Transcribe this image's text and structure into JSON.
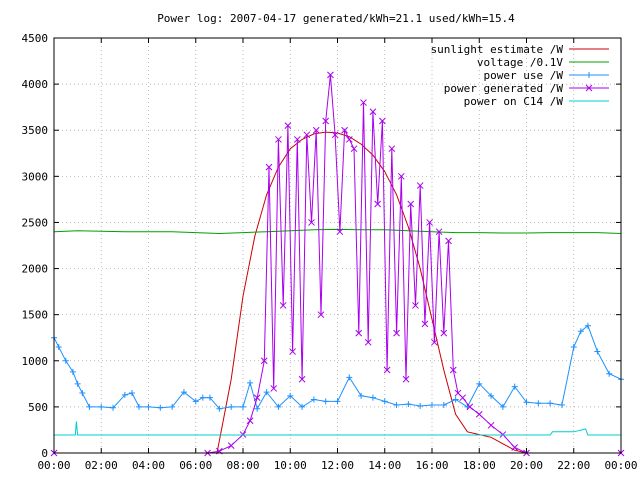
{
  "chart_data": {
    "type": "line",
    "title": "Power log: 2007-04-17 generated/kWh=21.1 used/kWh=15.4",
    "xlabel": "",
    "ylabel": "",
    "xlim": [
      0,
      24
    ],
    "ylim": [
      0,
      4500
    ],
    "x_ticks": [
      0,
      2,
      4,
      6,
      8,
      10,
      12,
      14,
      16,
      18,
      20,
      22,
      24
    ],
    "x_tick_labels": [
      "00:00",
      "02:00",
      "04:00",
      "06:00",
      "08:00",
      "10:00",
      "12:00",
      "14:00",
      "16:00",
      "18:00",
      "20:00",
      "22:00",
      "00:00"
    ],
    "y_ticks": [
      0,
      500,
      1000,
      1500,
      2000,
      2500,
      3000,
      3500,
      4000,
      4500
    ],
    "y_tick_labels": [
      "0",
      "500",
      "1000",
      "1500",
      "2000",
      "2500",
      "3000",
      "3500",
      "4000",
      "4500"
    ],
    "grid": true,
    "legend_position": "top-right",
    "series": [
      {
        "name": "sunlight estimate /W",
        "color": "#cc0000",
        "marker": "none",
        "x": [
          0,
          6.9,
          7.5,
          8,
          8.5,
          9,
          9.5,
          10,
          10.5,
          11,
          11.5,
          12,
          12.5,
          13,
          13.5,
          14,
          14.5,
          15,
          15.5,
          16,
          16.5,
          17,
          17.5,
          18,
          18.5,
          19,
          19.5,
          20,
          24
        ],
        "y": [
          0,
          0,
          800,
          1700,
          2350,
          2800,
          3100,
          3300,
          3400,
          3460,
          3480,
          3470,
          3430,
          3350,
          3230,
          3050,
          2800,
          2450,
          2000,
          1450,
          900,
          420,
          230,
          200,
          170,
          100,
          30,
          0,
          0
        ]
      },
      {
        "name": "voltage /0.1V",
        "color": "#00a000",
        "marker": "none",
        "x": [
          0,
          1,
          2,
          3,
          4,
          5,
          6,
          7,
          8,
          9,
          10,
          11,
          12,
          13,
          14,
          15,
          16,
          17,
          18,
          19,
          20,
          21,
          22,
          23,
          24
        ],
        "y": [
          2400,
          2410,
          2405,
          2400,
          2400,
          2400,
          2390,
          2380,
          2390,
          2400,
          2410,
          2420,
          2425,
          2420,
          2420,
          2410,
          2400,
          2390,
          2390,
          2385,
          2385,
          2390,
          2390,
          2390,
          2380
        ]
      },
      {
        "name": "power use /W",
        "color": "#1e90ff",
        "marker": "plus",
        "x": [
          0,
          0.2,
          0.5,
          0.8,
          1,
          1.2,
          1.5,
          2,
          2.5,
          3,
          3.3,
          3.6,
          4,
          4.5,
          5,
          5.5,
          6,
          6.3,
          6.6,
          7,
          7.5,
          8,
          8.3,
          8.6,
          9,
          9.5,
          10,
          10.5,
          11,
          11.5,
          12,
          12.5,
          13,
          13.5,
          14,
          14.5,
          15,
          15.5,
          16,
          16.5,
          17,
          17.5,
          18,
          18.5,
          19,
          19.5,
          20,
          20.5,
          21,
          21.5,
          22,
          22.3,
          22.6,
          23,
          23.5,
          24
        ],
        "y": [
          1250,
          1150,
          1000,
          880,
          750,
          650,
          500,
          500,
          490,
          630,
          650,
          500,
          500,
          490,
          500,
          660,
          560,
          600,
          600,
          480,
          500,
          500,
          760,
          480,
          660,
          500,
          620,
          500,
          580,
          560,
          560,
          820,
          620,
          600,
          560,
          520,
          530,
          510,
          520,
          520,
          580,
          500,
          750,
          620,
          500,
          720,
          550,
          540,
          540,
          520,
          1150,
          1320,
          1380,
          1100,
          860,
          800
        ]
      },
      {
        "name": "power generated /W",
        "color": "#aa00ee",
        "marker": "x",
        "x": [
          0,
          6.5,
          7,
          7.5,
          8,
          8.3,
          8.6,
          8.9,
          9.1,
          9.3,
          9.5,
          9.7,
          9.9,
          10.1,
          10.3,
          10.5,
          10.7,
          10.9,
          11.1,
          11.3,
          11.5,
          11.7,
          11.9,
          12.1,
          12.3,
          12.5,
          12.7,
          12.9,
          13.1,
          13.3,
          13.5,
          13.7,
          13.9,
          14.1,
          14.3,
          14.5,
          14.7,
          14.9,
          15.1,
          15.3,
          15.5,
          15.7,
          15.9,
          16.1,
          16.3,
          16.5,
          16.7,
          16.9,
          17.1,
          17.3,
          17.6,
          18,
          18.5,
          19,
          19.5,
          20,
          24
        ],
        "y": [
          0,
          0,
          20,
          80,
          200,
          350,
          600,
          1000,
          3100,
          700,
          3400,
          1600,
          3550,
          1100,
          3400,
          800,
          3450,
          2500,
          3500,
          1500,
          3600,
          4100,
          3450,
          2400,
          3500,
          3400,
          3300,
          1300,
          3800,
          1200,
          3700,
          2700,
          3600,
          900,
          3300,
          1300,
          3000,
          800,
          2700,
          1600,
          2900,
          1400,
          2500,
          1200,
          2400,
          1300,
          2300,
          900,
          650,
          600,
          500,
          420,
          300,
          200,
          60,
          0,
          0
        ]
      },
      {
        "name": "power on C14 /W",
        "color": "#00cccc",
        "marker": "none",
        "x": [
          0,
          0.5,
          0.9,
          0.95,
          1.0,
          1.5,
          2,
          4,
          6,
          8,
          10,
          12,
          14,
          16,
          18,
          20,
          20.5,
          21,
          21.1,
          22,
          22.5,
          22.6,
          23,
          24
        ],
        "y": [
          195,
          195,
          195,
          340,
          195,
          195,
          195,
          195,
          195,
          195,
          195,
          195,
          195,
          195,
          195,
          195,
          195,
          195,
          230,
          230,
          260,
          195,
          195,
          195
        ]
      }
    ]
  }
}
